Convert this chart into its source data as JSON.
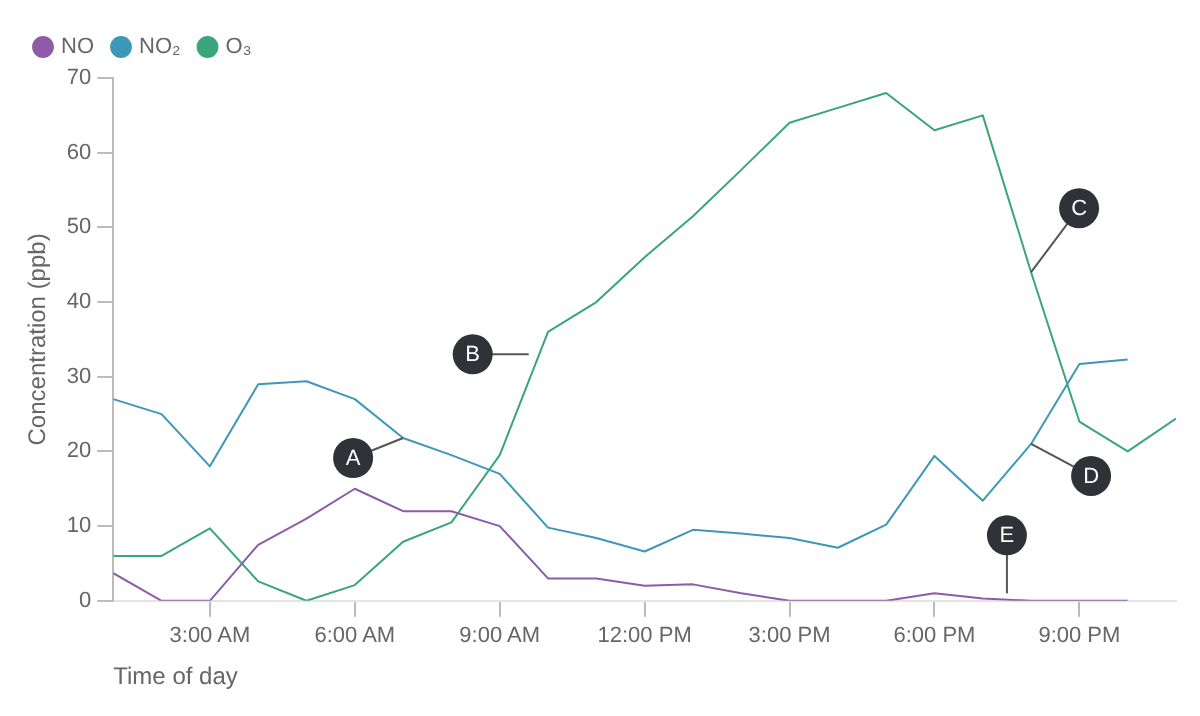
{
  "chart_data": {
    "type": "line",
    "xlabel": "Time of day",
    "ylabel": "Concentration (ppb)",
    "x": [
      1,
      2,
      3,
      4,
      5,
      6,
      7,
      8,
      9,
      10,
      11,
      12,
      13,
      14,
      15,
      16,
      17,
      18,
      19,
      20,
      21,
      22
    ],
    "series": [
      {
        "name": "NO",
        "color": "#8e5ba8",
        "values": [
          3.7,
          0,
          0,
          7.5,
          11,
          15,
          12,
          12,
          10,
          3,
          3,
          2,
          2.2,
          1,
          0,
          0,
          0,
          1,
          0.3,
          0,
          0,
          0
        ]
      },
      {
        "name": "NO₂",
        "color": "#3d98b8",
        "values": [
          27,
          25,
          18,
          29,
          29.4,
          27,
          21.8,
          19.5,
          17,
          9.8,
          8.4,
          6.6,
          9.5,
          9,
          8.4,
          7.1,
          10.2,
          19.4,
          13.4,
          21,
          31.7,
          32.3
        ]
      },
      {
        "name": "O₃",
        "color": "#3aa57a",
        "x": [
          1,
          2,
          3,
          4,
          5,
          6,
          7,
          8,
          9,
          10,
          11,
          12,
          13,
          14,
          15,
          16,
          17,
          18,
          19,
          20,
          21,
          22,
          23
        ],
        "values": [
          6,
          6,
          9.7,
          2.6,
          0,
          2.1,
          7.9,
          10.5,
          19.5,
          36,
          40,
          46,
          51.5,
          57.7,
          64,
          66,
          68,
          63,
          65,
          44,
          24,
          20,
          24.4
        ]
      }
    ],
    "xlim": [
      1,
      23
    ],
    "xticks": [
      {
        "value": 3,
        "label": "3:00 AM"
      },
      {
        "value": 6,
        "label": "6:00 AM"
      },
      {
        "value": 9,
        "label": "9:00 AM"
      },
      {
        "value": 12,
        "label": "12:00 PM"
      },
      {
        "value": 15,
        "label": "3:00 PM"
      },
      {
        "value": 18,
        "label": "6:00 PM"
      },
      {
        "value": 21,
        "label": "9:00 PM"
      }
    ],
    "ylim": [
      0,
      70
    ],
    "yticks": [
      0,
      10,
      20,
      30,
      40,
      50,
      60,
      70
    ],
    "grid": false,
    "legend": "top left",
    "marker": "none",
    "line_style": "solid",
    "annotations": [
      {
        "text": "A",
        "x": 7,
        "y": 21.8
      },
      {
        "text": "B",
        "x": 9.6,
        "y": 33
      },
      {
        "text": "C",
        "x": 20,
        "y": 44
      },
      {
        "text": "D",
        "x": 20,
        "y": 21
      },
      {
        "text": "E",
        "x": 19.5,
        "y": 1
      }
    ]
  }
}
